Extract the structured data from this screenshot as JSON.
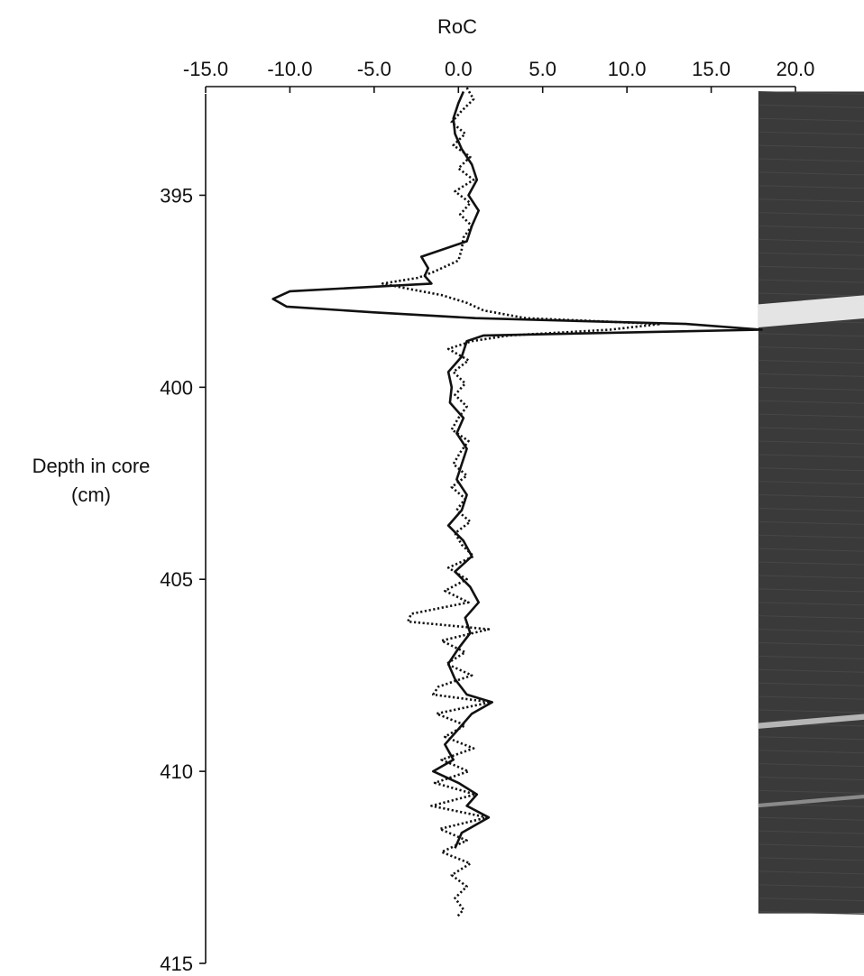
{
  "chart_data": {
    "type": "line",
    "orientation": "vertical-depth",
    "xlabel": "RoC",
    "ylabel_line1": "Depth in core",
    "ylabel_line2": "(cm)",
    "xlim": [
      -15.0,
      20.0
    ],
    "ylim": [
      392.5,
      415
    ],
    "x_ticks": [
      "-15.0",
      "-10.0",
      "-5.0",
      "0.0",
      "5.0",
      "10.0",
      "15.0",
      "20.0"
    ],
    "y_ticks": [
      "395",
      "400",
      "405",
      "410",
      "415"
    ],
    "x_axis_position": "top",
    "grid": false,
    "legend": "none",
    "series": [
      {
        "style": "solid",
        "color": "#111111",
        "depth": [
          392.3,
          392.6,
          393.0,
          393.4,
          393.8,
          394.2,
          394.6,
          395.0,
          395.4,
          395.8,
          396.2,
          396.6,
          396.9,
          397.1,
          397.3,
          397.5,
          397.7,
          397.9,
          398.05,
          398.2,
          398.35,
          398.5,
          398.65,
          398.8,
          399.2,
          399.6,
          400.0,
          400.4,
          400.8,
          401.2,
          401.6,
          402.0,
          402.4,
          402.8,
          403.2,
          403.6,
          404.0,
          404.4,
          404.8,
          405.2,
          405.6,
          406.0,
          406.4,
          406.8,
          407.2,
          407.6,
          408.0,
          408.2,
          408.5,
          408.9,
          409.3,
          409.7,
          410.0,
          410.3,
          410.6,
          410.9,
          411.2,
          411.6,
          412.0
        ],
        "values": [
          0.3,
          0.0,
          -0.3,
          -0.2,
          0.2,
          0.8,
          1.1,
          0.6,
          1.2,
          0.8,
          0.5,
          -2.2,
          -1.8,
          -2.0,
          -1.6,
          -10.0,
          -11.0,
          -10.2,
          -5.0,
          1.0,
          13.5,
          18.0,
          1.5,
          0.5,
          0.2,
          -0.6,
          -0.4,
          -0.5,
          0.3,
          -0.1,
          0.5,
          0.2,
          -0.1,
          0.5,
          0.2,
          -0.6,
          0.3,
          0.8,
          -0.2,
          0.7,
          1.2,
          0.4,
          0.7,
          0.0,
          -0.6,
          -0.2,
          0.5,
          2.0,
          0.8,
          0.0,
          -0.8,
          -0.3,
          -1.5,
          0.0,
          1.1,
          0.5,
          1.8,
          0.2,
          -0.2
        ]
      },
      {
        "style": "dotted",
        "color": "#111111",
        "depth": [
          392.2,
          392.5,
          392.8,
          393.1,
          393.4,
          393.7,
          394.0,
          394.3,
          394.6,
          394.9,
          395.2,
          395.5,
          395.8,
          396.1,
          396.4,
          396.7,
          397.0,
          397.15,
          397.3,
          397.45,
          397.6,
          397.8,
          398.0,
          398.2,
          398.35,
          398.5,
          398.65,
          398.8,
          399.0,
          399.3,
          399.6,
          399.9,
          400.2,
          400.5,
          400.8,
          401.1,
          401.4,
          401.7,
          402.0,
          402.3,
          402.6,
          402.9,
          403.2,
          403.5,
          403.8,
          404.1,
          404.4,
          404.7,
          405.0,
          405.3,
          405.6,
          405.9,
          406.1,
          406.3,
          406.6,
          406.9,
          407.2,
          407.5,
          407.8,
          408.0,
          408.2,
          408.5,
          408.8,
          409.1,
          409.4,
          409.7,
          410.0,
          410.3,
          410.6,
          410.9,
          411.2,
          411.5,
          411.8,
          412.1,
          412.4,
          412.7,
          413.0,
          413.3,
          413.6,
          413.8
        ],
        "values": [
          0.5,
          0.9,
          0.2,
          -0.4,
          0.4,
          -0.3,
          0.7,
          0.0,
          0.9,
          -0.2,
          0.7,
          0.1,
          0.8,
          0.3,
          0.2,
          0.0,
          -1.5,
          -2.4,
          -4.5,
          -2.8,
          -1.0,
          0.5,
          1.5,
          4.0,
          12.0,
          9.0,
          3.0,
          0.8,
          -0.6,
          0.6,
          -0.3,
          0.4,
          -0.2,
          0.5,
          0.0,
          -0.4,
          0.6,
          0.1,
          -0.3,
          0.5,
          -0.4,
          0.4,
          -0.1,
          0.7,
          -0.2,
          0.2,
          0.9,
          -0.6,
          0.5,
          -0.8,
          0.6,
          -2.8,
          -3.0,
          1.8,
          -1.0,
          0.4,
          -0.7,
          0.8,
          -1.2,
          -1.5,
          1.9,
          -1.3,
          0.4,
          -0.8,
          0.9,
          -1.0,
          0.6,
          -1.4,
          1.0,
          -1.6,
          1.7,
          -1.1,
          0.5,
          -1.0,
          0.7,
          -0.4,
          0.5,
          -0.2,
          0.3,
          -0.1
        ]
      }
    ],
    "core_image": {
      "x_from": 17.8,
      "x_to": 20.0,
      "depth_from": 392.3,
      "depth_to": 413.7,
      "base_color": "#3a3a3a",
      "bands": [
        {
          "depth_from": 397.7,
          "depth_to": 398.3,
          "color": "#e4e4e4"
        },
        {
          "depth_from": 408.6,
          "depth_to": 408.75,
          "color": "#b5b5b5"
        },
        {
          "depth_from": 410.7,
          "depth_to": 410.8,
          "color": "#8a8a8a"
        }
      ]
    }
  }
}
